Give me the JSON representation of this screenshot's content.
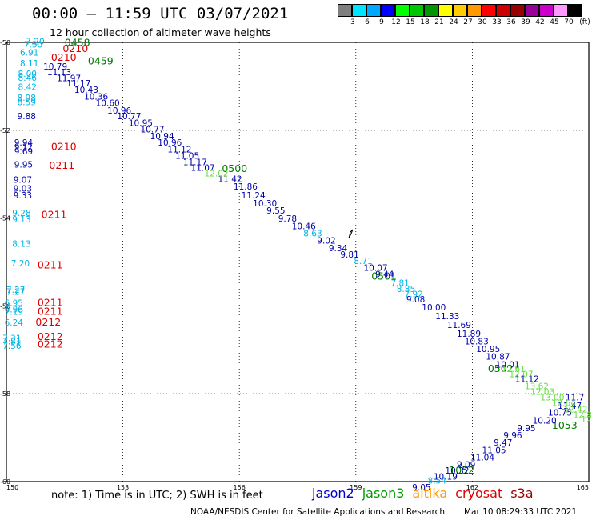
{
  "title": "00:00 – 11:59 UTC 03/07/2021",
  "subtitle": "12 hour collection of altimeter wave heights",
  "legend": {
    "unit": "(ft)",
    "bins": [
      {
        "label": "3",
        "color": "#7f7f7f"
      },
      {
        "label": "6",
        "color": "#00e5ff"
      },
      {
        "label": "9",
        "color": "#00a8ff"
      },
      {
        "label": "12",
        "color": "#0000ff"
      },
      {
        "label": "15",
        "color": "#00ff00"
      },
      {
        "label": "18",
        "color": "#00c800"
      },
      {
        "label": "21",
        "color": "#009600"
      },
      {
        "label": "24",
        "color": "#ffff00"
      },
      {
        "label": "27",
        "color": "#ffcc00"
      },
      {
        "label": "30",
        "color": "#ff9900"
      },
      {
        "label": "33",
        "color": "#ff0000"
      },
      {
        "label": "36",
        "color": "#cc0000"
      },
      {
        "label": "39",
        "color": "#990000"
      },
      {
        "label": "42",
        "color": "#990099"
      },
      {
        "label": "45",
        "color": "#cc00cc"
      },
      {
        "label": "70",
        "color": "#ff99ff"
      },
      {
        "label": "",
        "color": "#000000"
      }
    ]
  },
  "map": {
    "lat_ticks": [
      "-50",
      "-52",
      "-54",
      "-56",
      "-58",
      "-60"
    ],
    "lon_ticks": [
      "150",
      "153",
      "156",
      "159",
      "162",
      "165"
    ],
    "colors": {
      "jason2": "#0000aa",
      "cyan": "#00b4e6",
      "jason3": "#007a00",
      "lightgreen": "#66dd44",
      "cryosat": "#dd0000"
    },
    "tracks": [
      {
        "color": "cyan",
        "points": [
          [
            "7.20",
            150.5,
            -50.05
          ],
          [
            "7.50",
            150.45,
            -50.12
          ],
          [
            "6.91",
            150.35,
            -50.3
          ],
          [
            "8.11",
            150.35,
            -50.55
          ],
          [
            "8.00",
            150.3,
            -50.78
          ],
          [
            "8.46",
            150.3,
            -50.87
          ],
          [
            "8.42",
            150.3,
            -51.08
          ],
          [
            "8.98",
            150.28,
            -51.33
          ],
          [
            "8.59",
            150.28,
            -51.43
          ]
        ]
      },
      {
        "color": "jason2",
        "points": [
          [
            "9.88",
            150.28,
            -51.75
          ],
          [
            "9.94",
            150.2,
            -52.35
          ],
          [
            "9.12",
            150.2,
            -52.45
          ],
          [
            "9.69",
            150.2,
            -52.55
          ],
          [
            "9.95",
            150.2,
            -52.85
          ],
          [
            "9.07",
            150.18,
            -53.2
          ],
          [
            "9.03",
            150.18,
            -53.4
          ],
          [
            "9.33",
            150.18,
            -53.55
          ]
        ]
      },
      {
        "color": "cyan",
        "points": [
          [
            "9.28",
            150.15,
            -53.95
          ],
          [
            "9.13",
            150.15,
            -54.1
          ],
          [
            "8.13",
            150.15,
            -54.65
          ],
          [
            "7.20",
            150.12,
            -55.1
          ],
          [
            "7.27",
            150.0,
            -55.7
          ],
          [
            "7.27",
            150.0,
            -55.75
          ],
          [
            "6.95",
            149.95,
            -56.0
          ],
          [
            "6.96",
            149.95,
            -56.15
          ],
          [
            "7.19",
            149.95,
            -56.2
          ],
          [
            "6.24",
            149.95,
            -56.45
          ],
          [
            "7.31",
            149.9,
            -56.8
          ],
          [
            "7.81",
            149.9,
            -56.88
          ],
          [
            "7.56",
            149.9,
            -56.98
          ]
        ]
      },
      {
        "color": "cryosat",
        "points": [
          [
            "0210",
            151.45,
            -50.22
          ],
          [
            "0210",
            151.15,
            -50.42
          ],
          [
            "0210",
            151.15,
            -52.45
          ],
          [
            "0211",
            151.1,
            -52.88
          ],
          [
            "0211",
            150.9,
            -54.0
          ],
          [
            "0211",
            150.8,
            -55.15
          ],
          [
            "0211",
            150.8,
            -56.0
          ],
          [
            "0211",
            150.8,
            -56.2
          ],
          [
            "0212",
            150.75,
            -56.45
          ],
          [
            "0212",
            150.8,
            -56.78
          ],
          [
            "0212",
            150.8,
            -56.95
          ]
        ]
      },
      {
        "color": "jason3",
        "points": [
          [
            "0458",
            151.5,
            -50.08
          ],
          [
            "0459",
            152.1,
            -50.5
          ],
          [
            "0500",
            155.55,
            -52.95
          ],
          [
            "0501",
            159.4,
            -55.4
          ],
          [
            "0502",
            162.4,
            -57.5
          ],
          [
            "1053",
            164.05,
            -58.8
          ],
          [
            "1052",
            161.4,
            -59.82
          ]
        ]
      },
      {
        "color": "jason2",
        "points": [
          [
            "10.79",
            150.95,
            -50.62
          ],
          [
            "11.13",
            151.05,
            -50.75
          ],
          [
            "11.97",
            151.3,
            -50.88
          ],
          [
            "11.17",
            151.55,
            -51.0
          ],
          [
            "10.43",
            151.75,
            -51.15
          ],
          [
            "10.36",
            152.0,
            -51.3
          ],
          [
            "10.60",
            152.3,
            -51.45
          ],
          [
            "10.96",
            152.6,
            -51.62
          ],
          [
            "10.77",
            152.85,
            -51.75
          ],
          [
            "10.95",
            153.15,
            -51.9
          ],
          [
            "10.77",
            153.45,
            -52.05
          ],
          [
            "10.94",
            153.7,
            -52.2
          ],
          [
            "10.96",
            153.9,
            -52.35
          ],
          [
            "11.12",
            154.15,
            -52.5
          ],
          [
            "11.05",
            154.35,
            -52.65
          ],
          [
            "11.17",
            154.55,
            -52.8
          ],
          [
            "11.07",
            154.75,
            -52.92
          ],
          [
            "11.42",
            155.45,
            -53.18
          ],
          [
            "11.86",
            155.85,
            -53.35
          ],
          [
            "11.24",
            156.05,
            -53.55
          ],
          [
            "10.30",
            156.35,
            -53.73
          ],
          [
            "9.55",
            156.7,
            -53.9
          ],
          [
            "9.78",
            157.0,
            -54.08
          ],
          [
            "10.46",
            157.35,
            -54.25
          ],
          [
            "9.02",
            158.0,
            -54.58
          ],
          [
            "9.34",
            158.3,
            -54.75
          ],
          [
            "9.81",
            158.6,
            -54.9
          ],
          [
            "10.07",
            159.2,
            -55.2
          ],
          [
            "9.44",
            159.5,
            -55.35
          ],
          [
            "9.08",
            160.3,
            -55.92
          ],
          [
            "10.00",
            160.7,
            -56.1
          ],
          [
            "11.33",
            161.05,
            -56.3
          ],
          [
            "11.69",
            161.35,
            -56.5
          ],
          [
            "11.89",
            161.6,
            -56.7
          ],
          [
            "10.83",
            161.8,
            -56.88
          ],
          [
            "10.95",
            162.1,
            -57.05
          ],
          [
            "10.87",
            162.35,
            -57.22
          ],
          [
            "10.01",
            162.6,
            -57.4
          ],
          [
            "11.12",
            163.1,
            -57.73
          ],
          [
            "11.47",
            164.2,
            -58.34
          ],
          [
            "11.7",
            164.4,
            -58.15
          ],
          [
            "10.75",
            163.95,
            -58.5
          ],
          [
            "10.20",
            163.55,
            -58.68
          ],
          [
            "9.95",
            163.15,
            -58.85
          ],
          [
            "9.96",
            162.8,
            -59.02
          ],
          [
            "9.47",
            162.55,
            -59.18
          ],
          [
            "11.05",
            162.25,
            -59.35
          ],
          [
            "11.04",
            161.95,
            -59.52
          ],
          [
            "9.09",
            161.6,
            -59.68
          ],
          [
            "10.32",
            161.3,
            -59.82
          ],
          [
            "10.19",
            161.0,
            -59.95
          ],
          [
            "9.05",
            160.45,
            -60.2
          ]
        ]
      },
      {
        "color": "cyan",
        "points": [
          [
            "8.63",
            157.65,
            -54.42
          ],
          [
            "8.71",
            158.95,
            -55.05
          ],
          [
            "7.81",
            159.9,
            -55.55
          ],
          [
            "8.85",
            160.05,
            -55.68
          ],
          [
            "7.92",
            160.25,
            -55.8
          ],
          [
            "8.54",
            160.85,
            -60.05
          ]
        ]
      },
      {
        "color": "lightgreen",
        "points": [
          [
            "12.02",
            155.1,
            -53.05
          ],
          [
            "12.61",
            162.75,
            -57.5
          ],
          [
            "12.07",
            162.95,
            -57.62
          ],
          [
            "13.62",
            163.35,
            -57.9
          ],
          [
            "12.03",
            163.5,
            -58.02
          ],
          [
            "13.00",
            163.75,
            -58.15
          ],
          [
            "12.64",
            164.05,
            -58.28
          ],
          [
            "12.42",
            164.35,
            -58.42
          ],
          [
            "12.89",
            164.6,
            -58.55
          ],
          [
            "12.19",
            164.8,
            -58.65
          ]
        ]
      }
    ]
  },
  "note": "note: 1) Time is in UTC; 2) SWH is in feet",
  "satellites": [
    {
      "name": "jason2",
      "color": "#0000cc"
    },
    {
      "name": "jason3",
      "color": "#009900"
    },
    {
      "name": "altika",
      "color": "#ff9900"
    },
    {
      "name": "cryosat",
      "color": "#dd0000"
    },
    {
      "name": "s3a",
      "color": "#990000"
    }
  ],
  "footer": {
    "org": "NOAA/NESDIS Center for Satellite Applications and Research",
    "timestamp": "Mar 10 08:29:33 UTC 2021"
  }
}
